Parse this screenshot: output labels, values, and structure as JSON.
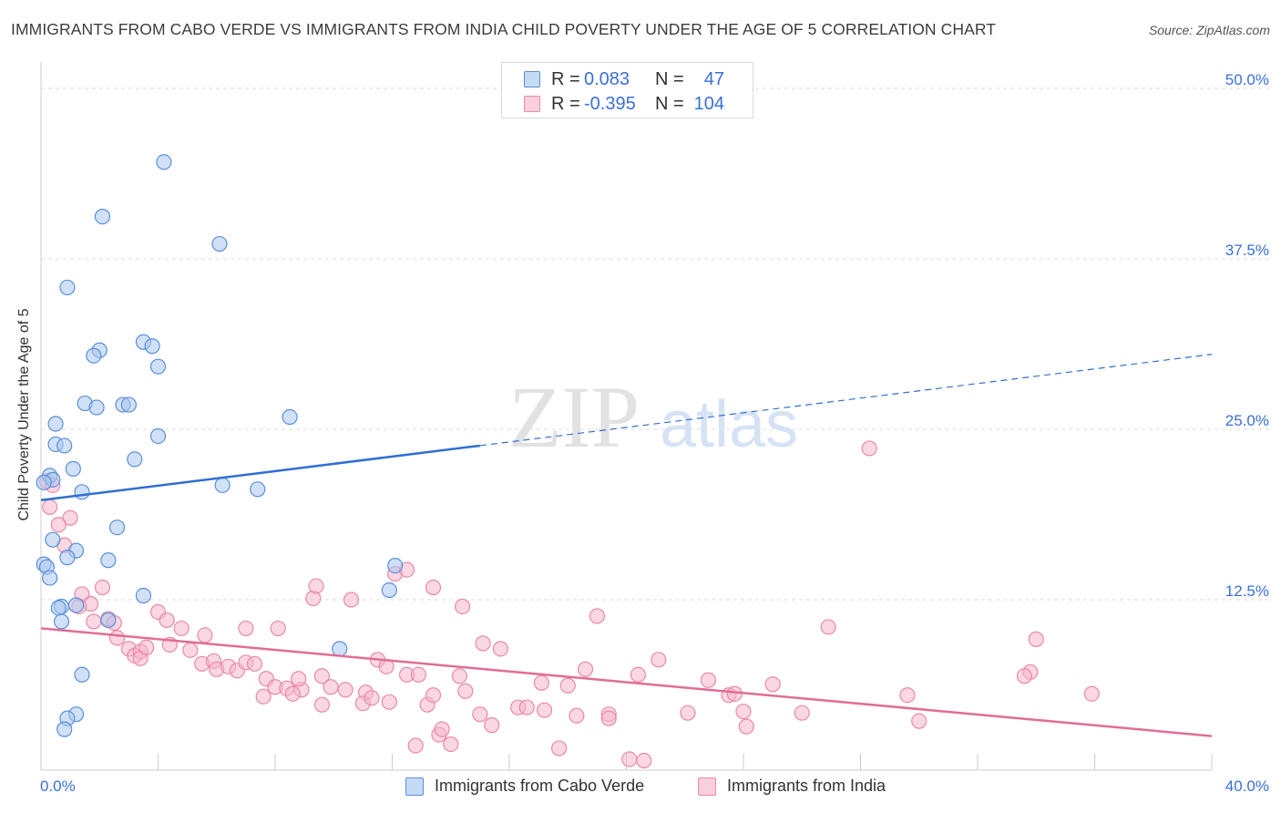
{
  "title": "IMMIGRANTS FROM CABO VERDE VS IMMIGRANTS FROM INDIA CHILD POVERTY UNDER THE AGE OF 5 CORRELATION CHART",
  "source": "Source: ZipAtlas.com",
  "watermark": {
    "zip": "ZIP",
    "atlas": "atlas"
  },
  "legend": {
    "row1": {
      "r_label": "R =",
      "r_value": "0.083",
      "n_label": "N =",
      "n_value": "47"
    },
    "row2": {
      "r_label": "R =",
      "r_value": "-0.395",
      "n_label": "N =",
      "n_value": "104"
    }
  },
  "colors": {
    "blue_fill": "#a9c8f0",
    "blue_stroke": "#5b8fd9",
    "blue_line": "#2f6fd0",
    "pink_fill": "#f6b7cb",
    "pink_stroke": "#e88aa7",
    "pink_line": "#e06d96",
    "axis_text": "#3a6fd8",
    "grid": "#dcdcdc"
  },
  "chart_data": {
    "type": "scatter",
    "xlabel": "",
    "ylabel": "Child Poverty Under the Age of 5",
    "xlim": [
      0,
      40
    ],
    "ylim": [
      0,
      50
    ],
    "x_tick_labels": [
      "0.0%",
      "40.0%"
    ],
    "y_ticks": [
      12.5,
      25.0,
      37.5,
      50.0
    ],
    "y_tick_labels": [
      "12.5%",
      "25.0%",
      "37.5%",
      "50.0%"
    ],
    "legend_position": "top-center",
    "series": [
      {
        "name": "Immigrants from Cabo Verde",
        "color": "blue",
        "trend": {
          "x": [
            0,
            15
          ],
          "y": [
            19.8,
            23.8
          ],
          "dashed_to": [
            40,
            30.5
          ]
        },
        "points": [
          [
            4.2,
            44.6
          ],
          [
            2.1,
            40.6
          ],
          [
            6.1,
            38.6
          ],
          [
            0.9,
            35.4
          ],
          [
            3.5,
            31.4
          ],
          [
            3.8,
            31.1
          ],
          [
            2.0,
            30.8
          ],
          [
            1.8,
            30.4
          ],
          [
            4.0,
            29.6
          ],
          [
            1.5,
            26.9
          ],
          [
            2.8,
            26.8
          ],
          [
            3.0,
            26.8
          ],
          [
            1.9,
            26.6
          ],
          [
            8.5,
            25.9
          ],
          [
            0.5,
            25.4
          ],
          [
            4.0,
            24.5
          ],
          [
            0.5,
            23.9
          ],
          [
            0.8,
            23.8
          ],
          [
            3.2,
            22.8
          ],
          [
            1.1,
            22.1
          ],
          [
            0.3,
            21.6
          ],
          [
            0.4,
            21.3
          ],
          [
            0.1,
            21.1
          ],
          [
            6.2,
            20.9
          ],
          [
            7.4,
            20.6
          ],
          [
            1.4,
            20.4
          ],
          [
            2.6,
            17.8
          ],
          [
            0.4,
            16.9
          ],
          [
            1.2,
            16.1
          ],
          [
            0.9,
            15.6
          ],
          [
            2.3,
            15.4
          ],
          [
            0.1,
            15.1
          ],
          [
            12.1,
            15.0
          ],
          [
            0.2,
            14.9
          ],
          [
            0.3,
            14.1
          ],
          [
            11.9,
            13.2
          ],
          [
            3.5,
            12.8
          ],
          [
            0.7,
            12.0
          ],
          [
            1.2,
            12.1
          ],
          [
            0.6,
            11.9
          ],
          [
            2.3,
            11.0
          ],
          [
            0.7,
            10.9
          ],
          [
            10.2,
            8.9
          ],
          [
            1.4,
            7.0
          ],
          [
            1.2,
            4.1
          ],
          [
            0.9,
            3.8
          ],
          [
            0.8,
            3.0
          ]
        ]
      },
      {
        "name": "Immigrants from India",
        "color": "pink",
        "trend": {
          "x": [
            0,
            40
          ],
          "y": [
            10.4,
            2.5
          ]
        },
        "points": [
          [
            0.2,
            21.2
          ],
          [
            0.4,
            20.9
          ],
          [
            0.3,
            19.3
          ],
          [
            1.0,
            18.5
          ],
          [
            0.6,
            18.0
          ],
          [
            0.8,
            16.5
          ],
          [
            2.1,
            13.4
          ],
          [
            1.4,
            12.9
          ],
          [
            1.7,
            12.2
          ],
          [
            1.3,
            12.0
          ],
          [
            2.3,
            11.1
          ],
          [
            2.5,
            10.8
          ],
          [
            1.8,
            10.9
          ],
          [
            2.6,
            9.7
          ],
          [
            3.0,
            8.9
          ],
          [
            3.2,
            8.4
          ],
          [
            3.4,
            8.7
          ],
          [
            3.4,
            8.2
          ],
          [
            3.6,
            9.0
          ],
          [
            4.0,
            11.6
          ],
          [
            4.3,
            11.0
          ],
          [
            4.4,
            9.2
          ],
          [
            4.8,
            10.4
          ],
          [
            5.1,
            8.8
          ],
          [
            5.6,
            9.9
          ],
          [
            5.5,
            7.8
          ],
          [
            5.9,
            8.0
          ],
          [
            6.0,
            7.4
          ],
          [
            6.4,
            7.6
          ],
          [
            6.7,
            7.3
          ],
          [
            7.0,
            10.4
          ],
          [
            7.0,
            7.9
          ],
          [
            7.3,
            7.8
          ],
          [
            7.6,
            5.4
          ],
          [
            7.7,
            6.7
          ],
          [
            8.0,
            6.1
          ],
          [
            8.1,
            10.4
          ],
          [
            8.4,
            6.0
          ],
          [
            8.9,
            5.9
          ],
          [
            8.6,
            5.6
          ],
          [
            8.8,
            6.7
          ],
          [
            9.3,
            12.6
          ],
          [
            9.4,
            13.5
          ],
          [
            9.6,
            6.9
          ],
          [
            9.6,
            4.8
          ],
          [
            9.9,
            6.1
          ],
          [
            10.4,
            5.9
          ],
          [
            10.6,
            12.5
          ],
          [
            11.1,
            5.7
          ],
          [
            11.0,
            4.9
          ],
          [
            11.3,
            5.3
          ],
          [
            11.5,
            8.1
          ],
          [
            11.9,
            5.0
          ],
          [
            11.8,
            7.6
          ],
          [
            12.5,
            7.0
          ],
          [
            12.1,
            14.4
          ],
          [
            12.5,
            14.7
          ],
          [
            12.8,
            1.8
          ],
          [
            12.9,
            7.0
          ],
          [
            13.2,
            4.8
          ],
          [
            13.4,
            13.4
          ],
          [
            13.4,
            5.5
          ],
          [
            13.6,
            2.6
          ],
          [
            13.7,
            3.0
          ],
          [
            14.0,
            1.9
          ],
          [
            14.3,
            6.9
          ],
          [
            14.4,
            12.0
          ],
          [
            14.5,
            5.8
          ],
          [
            15.0,
            4.1
          ],
          [
            15.1,
            9.3
          ],
          [
            15.4,
            3.3
          ],
          [
            15.7,
            8.9
          ],
          [
            16.3,
            4.6
          ],
          [
            16.6,
            4.6
          ],
          [
            17.1,
            6.4
          ],
          [
            17.2,
            4.4
          ],
          [
            17.7,
            1.6
          ],
          [
            18.0,
            6.2
          ],
          [
            18.3,
            4.0
          ],
          [
            18.6,
            7.4
          ],
          [
            19.0,
            11.3
          ],
          [
            19.4,
            4.1
          ],
          [
            19.4,
            3.8
          ],
          [
            20.1,
            0.8
          ],
          [
            20.4,
            7.0
          ],
          [
            20.6,
            0.7
          ],
          [
            21.1,
            8.1
          ],
          [
            22.1,
            4.2
          ],
          [
            22.8,
            6.6
          ],
          [
            23.5,
            5.5
          ],
          [
            23.7,
            5.6
          ],
          [
            24.0,
            4.3
          ],
          [
            24.1,
            3.2
          ],
          [
            25.0,
            6.3
          ],
          [
            26.0,
            4.2
          ],
          [
            26.9,
            10.5
          ],
          [
            28.3,
            23.6
          ],
          [
            29.6,
            5.5
          ],
          [
            30.0,
            3.6
          ],
          [
            33.8,
            7.2
          ],
          [
            33.6,
            6.9
          ],
          [
            34.0,
            9.6
          ],
          [
            35.9,
            5.6
          ]
        ]
      }
    ]
  }
}
